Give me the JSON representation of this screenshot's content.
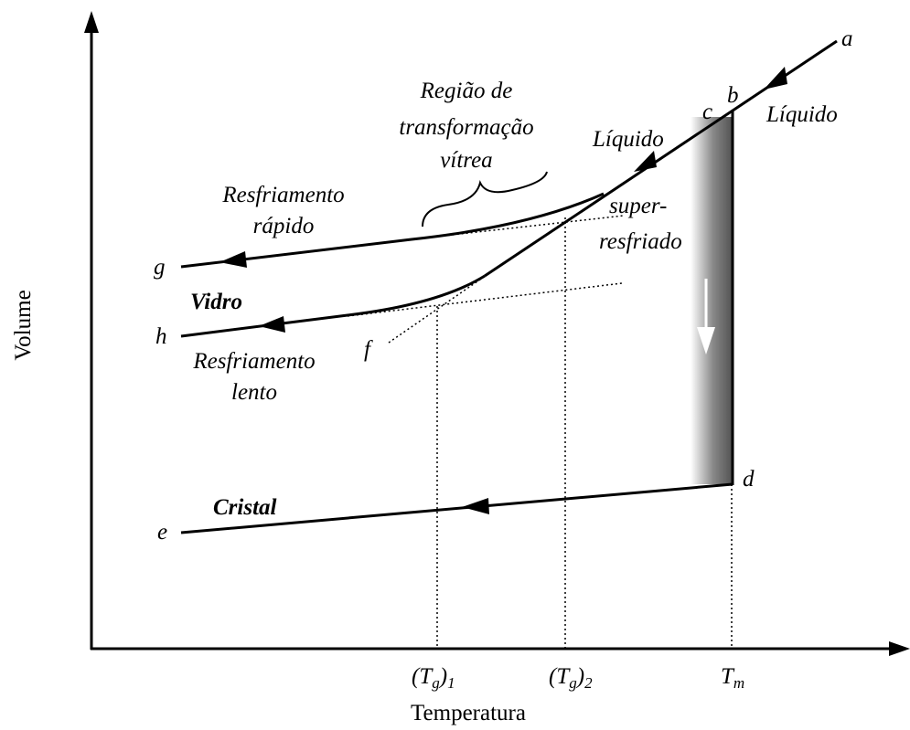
{
  "points": {
    "a": "a",
    "b": "b",
    "c": "c",
    "d": "d",
    "e": "e",
    "f": "f",
    "g": "g",
    "h": "h"
  },
  "labels": {
    "liquido_top": "Líquido",
    "liquido_mid": "Líquido",
    "regiao": [
      "Região de",
      "transformação",
      "vítrea"
    ],
    "rapido": [
      "Resfriamento",
      "rápido"
    ],
    "lento": [
      "Resfriamento",
      "lento"
    ],
    "vidro": "Vidro",
    "cristal": "Cristal",
    "super": [
      "super-",
      "resfriado"
    ]
  },
  "ticks": {
    "tg1": [
      "(T",
      "g",
      ")",
      "1"
    ],
    "tg2": [
      "(T",
      "g",
      ")",
      "2"
    ],
    "tm": [
      "T",
      "m"
    ]
  },
  "axes": {
    "y": "Volume",
    "x": "Temperatura"
  }
}
